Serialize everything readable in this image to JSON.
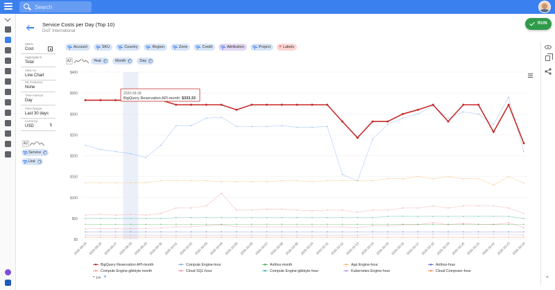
{
  "app": {
    "search_placeholder": "Search"
  },
  "header": {
    "title": "Service Costs per Day (Top 10)",
    "subtitle": "DoiT International",
    "run_label": "RUN"
  },
  "filters": [
    "Account",
    "SKU",
    "Country",
    "Region",
    "Zone",
    "Credit",
    "Attribution",
    "Project"
  ],
  "labels_chip": "Labels",
  "group_by": [
    "Year",
    "Month",
    "Day"
  ],
  "settings": [
    {
      "label": "Metric",
      "value": "Cost"
    },
    {
      "label": "Aggregation",
      "value": "Total"
    },
    {
      "label": "View As",
      "value": "Line Chart"
    },
    {
      "label": "ML Features",
      "value": "None"
    },
    {
      "label": "Time Interval",
      "value": "Day"
    },
    {
      "label": "Time Range",
      "value": "Last 30 days"
    },
    {
      "label": "Currency",
      "value": "USD",
      "symbol": "$"
    }
  ],
  "sort_label": "AZ",
  "rows": [
    "Service",
    "Unit"
  ],
  "legend_pager": "1/4",
  "tooltip": {
    "date": "2020-09-28",
    "series": "BigQuery Reservation API-month",
    "value": "$333.33"
  },
  "chart_data": {
    "type": "line",
    "title": "",
    "xlabel": "",
    "ylabel": "",
    "ylim": [
      0,
      400
    ],
    "yticks": [
      0,
      50,
      100,
      150,
      200,
      250,
      300,
      350,
      400
    ],
    "ytick_labels": [
      "$0",
      "$50",
      "$100",
      "$150",
      "$200",
      "$250",
      "$300",
      "$350",
      "$400"
    ],
    "grid": true,
    "legend_position": "bottom",
    "x": [
      "2020-09-25",
      "2020-09-26",
      "2020-09-27",
      "2020-09-28",
      "2020-09-29",
      "2020-09-30",
      "2020-10-01",
      "2020-10-02",
      "2020-10-03",
      "2020-10-04",
      "2020-10-05",
      "2020-10-06",
      "2020-10-07",
      "2020-10-08",
      "2020-10-09",
      "2020-10-10",
      "2020-10-11",
      "2020-10-12",
      "2020-10-13",
      "2020-10-14",
      "2020-10-15",
      "2020-10-16",
      "2020-10-17",
      "2020-10-18",
      "2020-10-19",
      "2020-10-20",
      "2020-10-21",
      "2020-10-22",
      "2020-10-23",
      "2020-10-24"
    ],
    "highlight_x": "2020-09-28",
    "series": [
      {
        "name": "BigQuery Reservation API-month",
        "color": "#c62828",
        "values": [
          333,
          333,
          333,
          333,
          333,
          333,
          322,
          322,
          322,
          322,
          310,
          322,
          322,
          322,
          322,
          322,
          322,
          282,
          243,
          282,
          282,
          300,
          310,
          322,
          282,
          322,
          322,
          257,
          322,
          230
        ]
      },
      {
        "name": "Compute Engine-hour",
        "color": "#7baee8",
        "values": [
          225,
          215,
          210,
          205,
          196,
          225,
          272,
          272,
          290,
          292,
          270,
          270,
          270,
          272,
          268,
          268,
          270,
          155,
          140,
          240,
          275,
          290,
          300,
          320,
          290,
          305,
          300,
          275,
          340,
          210
        ]
      },
      {
        "name": "Anthos-month",
        "color": "#4caf50",
        "values": [
          36,
          36,
          36,
          36,
          36,
          36,
          36,
          36,
          36,
          36,
          36,
          36,
          36,
          36,
          36,
          36,
          36,
          36,
          36,
          36,
          36,
          36,
          36,
          36,
          36,
          36,
          36,
          36,
          36,
          36
        ]
      },
      {
        "name": "App Engine-hour",
        "color": "#f5b971",
        "values": [
          135,
          135,
          135,
          135,
          136,
          140,
          140,
          140,
          140,
          138,
          138,
          138,
          138,
          140,
          140,
          138,
          140,
          140,
          140,
          140,
          145,
          145,
          150,
          145,
          150,
          145,
          145,
          130,
          150,
          135
        ]
      },
      {
        "name": "Anthos-hour",
        "color": "#5c6bc0",
        "values": [
          18,
          18,
          18,
          18,
          18,
          18,
          18,
          18,
          18,
          18,
          18,
          18,
          18,
          18,
          18,
          18,
          18,
          18,
          18,
          18,
          18,
          18,
          18,
          18,
          18,
          18,
          18,
          18,
          18,
          18
        ]
      },
      {
        "name": "Compute Engine-gibibyte month",
        "color": "#ef9a9a",
        "values": [
          58,
          60,
          58,
          60,
          58,
          62,
          75,
          75,
          80,
          110,
          70,
          70,
          72,
          72,
          70,
          68,
          70,
          70,
          65,
          70,
          70,
          75,
          75,
          80,
          75,
          80,
          80,
          80,
          75,
          62
        ]
      },
      {
        "name": "Cloud SQL-hour",
        "color": "#f48fb1",
        "values": [
          25,
          26,
          25,
          25,
          26,
          27,
          30,
          30,
          32,
          35,
          30,
          30,
          30,
          30,
          30,
          30,
          30,
          30,
          28,
          32,
          32,
          35,
          35,
          40,
          35,
          38,
          36,
          35,
          40,
          28
        ]
      },
      {
        "name": "Compute Engine-gibibyte hour",
        "color": "#4db6ac",
        "values": [
          50,
          50,
          50,
          50,
          50,
          50,
          52,
          52,
          52,
          52,
          52,
          52,
          52,
          52,
          52,
          52,
          52,
          52,
          52,
          52,
          55,
          55,
          55,
          55,
          55,
          55,
          55,
          55,
          55,
          50
        ]
      },
      {
        "name": "Kubernetes Engine-hour",
        "color": "#b39ddb",
        "values": [
          10,
          10,
          10,
          10,
          10,
          10,
          10,
          10,
          10,
          10,
          10,
          10,
          10,
          10,
          10,
          10,
          10,
          10,
          10,
          12,
          12,
          12,
          12,
          12,
          12,
          12,
          12,
          12,
          12,
          10
        ]
      },
      {
        "name": "Cloud Composer-hour",
        "color": "#ff8a65",
        "values": [
          5,
          5,
          5,
          5,
          5,
          5,
          5,
          5,
          5,
          5,
          5,
          5,
          5,
          5,
          5,
          5,
          5,
          5,
          5,
          5,
          5,
          5,
          5,
          5,
          5,
          5,
          5,
          5,
          5,
          5
        ]
      }
    ]
  }
}
